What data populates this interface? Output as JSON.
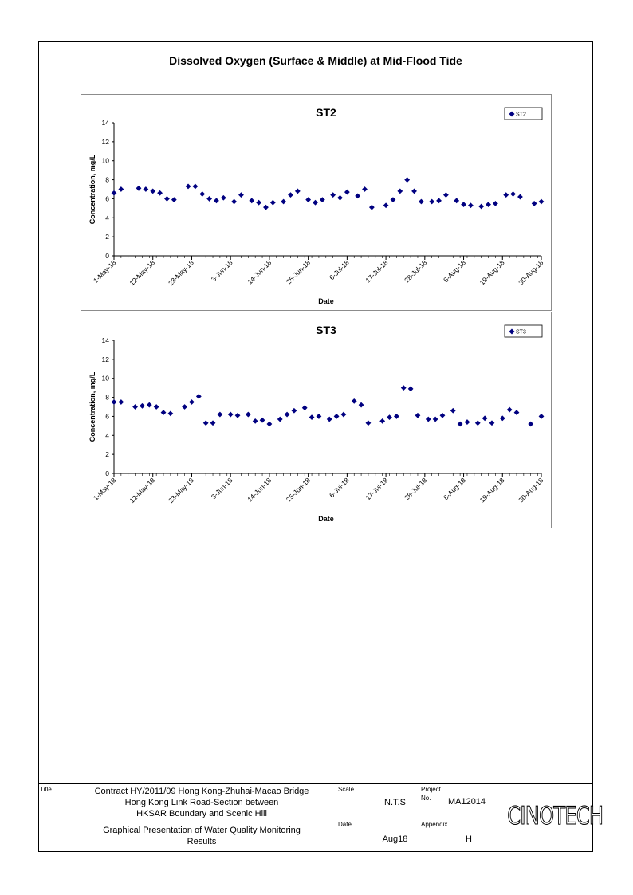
{
  "page": {
    "title": "Dissolved Oxygen (Surface & Middle) at Mid-Flood Tide"
  },
  "chart_data": [
    {
      "type": "scatter",
      "title": "ST2",
      "xlabel": "Date",
      "ylabel": "Concentration, mg/L",
      "ylim": [
        0,
        14
      ],
      "yticks": [
        0,
        2,
        4,
        6,
        8,
        10,
        12,
        14
      ],
      "xticks": [
        "1-May-18",
        "12-May-18",
        "23-May-18",
        "3-Jun-18",
        "14-Jun-18",
        "25-Jun-18",
        "6-Jul-18",
        "17-Jul-18",
        "28-Jul-18",
        "8-Aug-18",
        "19-Aug-18",
        "30-Aug-18"
      ],
      "xlim": [
        "2018-05-01",
        "2018-08-30"
      ],
      "legend_position": "top-right",
      "series": [
        {
          "name": "ST2",
          "color": "#000080",
          "marker": "diamond",
          "points": [
            {
              "x": "2018-05-01",
              "y": 6.6
            },
            {
              "x": "2018-05-03",
              "y": 7.0
            },
            {
              "x": "2018-05-08",
              "y": 7.1
            },
            {
              "x": "2018-05-10",
              "y": 7.0
            },
            {
              "x": "2018-05-12",
              "y": 6.8
            },
            {
              "x": "2018-05-14",
              "y": 6.6
            },
            {
              "x": "2018-05-16",
              "y": 6.0
            },
            {
              "x": "2018-05-18",
              "y": 5.9
            },
            {
              "x": "2018-05-22",
              "y": 7.3
            },
            {
              "x": "2018-05-24",
              "y": 7.3
            },
            {
              "x": "2018-05-26",
              "y": 6.5
            },
            {
              "x": "2018-05-28",
              "y": 6.0
            },
            {
              "x": "2018-05-30",
              "y": 5.8
            },
            {
              "x": "2018-06-01",
              "y": 6.1
            },
            {
              "x": "2018-06-04",
              "y": 5.7
            },
            {
              "x": "2018-06-06",
              "y": 6.4
            },
            {
              "x": "2018-06-09",
              "y": 5.8
            },
            {
              "x": "2018-06-11",
              "y": 5.6
            },
            {
              "x": "2018-06-13",
              "y": 5.1
            },
            {
              "x": "2018-06-15",
              "y": 5.6
            },
            {
              "x": "2018-06-18",
              "y": 5.7
            },
            {
              "x": "2018-06-20",
              "y": 6.4
            },
            {
              "x": "2018-06-22",
              "y": 6.8
            },
            {
              "x": "2018-06-25",
              "y": 5.9
            },
            {
              "x": "2018-06-27",
              "y": 5.6
            },
            {
              "x": "2018-06-29",
              "y": 5.9
            },
            {
              "x": "2018-07-02",
              "y": 6.4
            },
            {
              "x": "2018-07-04",
              "y": 6.1
            },
            {
              "x": "2018-07-06",
              "y": 6.7
            },
            {
              "x": "2018-07-09",
              "y": 6.3
            },
            {
              "x": "2018-07-11",
              "y": 7.0
            },
            {
              "x": "2018-07-13",
              "y": 5.1
            },
            {
              "x": "2018-07-17",
              "y": 5.3
            },
            {
              "x": "2018-07-19",
              "y": 5.9
            },
            {
              "x": "2018-07-21",
              "y": 6.8
            },
            {
              "x": "2018-07-23",
              "y": 8.0
            },
            {
              "x": "2018-07-25",
              "y": 6.8
            },
            {
              "x": "2018-07-27",
              "y": 5.7
            },
            {
              "x": "2018-07-30",
              "y": 5.7
            },
            {
              "x": "2018-08-01",
              "y": 5.8
            },
            {
              "x": "2018-08-03",
              "y": 6.4
            },
            {
              "x": "2018-08-06",
              "y": 5.8
            },
            {
              "x": "2018-08-08",
              "y": 5.4
            },
            {
              "x": "2018-08-10",
              "y": 5.3
            },
            {
              "x": "2018-08-13",
              "y": 5.2
            },
            {
              "x": "2018-08-15",
              "y": 5.4
            },
            {
              "x": "2018-08-17",
              "y": 5.5
            },
            {
              "x": "2018-08-20",
              "y": 6.4
            },
            {
              "x": "2018-08-22",
              "y": 6.5
            },
            {
              "x": "2018-08-24",
              "y": 6.2
            },
            {
              "x": "2018-08-28",
              "y": 5.5
            },
            {
              "x": "2018-08-30",
              "y": 5.7
            }
          ]
        }
      ]
    },
    {
      "type": "scatter",
      "title": "ST3",
      "xlabel": "Date",
      "ylabel": "Concentration, mg/L",
      "ylim": [
        0,
        14
      ],
      "yticks": [
        0,
        2,
        4,
        6,
        8,
        10,
        12,
        14
      ],
      "xticks": [
        "1-May-18",
        "12-May-18",
        "23-May-18",
        "3-Jun-18",
        "14-Jun-18",
        "25-Jun-18",
        "6-Jul-18",
        "17-Jul-18",
        "28-Jul-18",
        "8-Aug-18",
        "19-Aug-18",
        "30-Aug-18"
      ],
      "xlim": [
        "2018-05-01",
        "2018-08-30"
      ],
      "legend_position": "top-right",
      "series": [
        {
          "name": "ST3",
          "color": "#000080",
          "marker": "diamond",
          "points": [
            {
              "x": "2018-05-01",
              "y": 7.5
            },
            {
              "x": "2018-05-03",
              "y": 7.5
            },
            {
              "x": "2018-05-07",
              "y": 7.0
            },
            {
              "x": "2018-05-09",
              "y": 7.1
            },
            {
              "x": "2018-05-11",
              "y": 7.2
            },
            {
              "x": "2018-05-13",
              "y": 7.0
            },
            {
              "x": "2018-05-15",
              "y": 6.4
            },
            {
              "x": "2018-05-17",
              "y": 6.3
            },
            {
              "x": "2018-05-21",
              "y": 7.0
            },
            {
              "x": "2018-05-23",
              "y": 7.5
            },
            {
              "x": "2018-05-25",
              "y": 8.1
            },
            {
              "x": "2018-05-27",
              "y": 5.3
            },
            {
              "x": "2018-05-29",
              "y": 5.3
            },
            {
              "x": "2018-05-31",
              "y": 6.2
            },
            {
              "x": "2018-06-03",
              "y": 6.2
            },
            {
              "x": "2018-06-05",
              "y": 6.1
            },
            {
              "x": "2018-06-08",
              "y": 6.2
            },
            {
              "x": "2018-06-10",
              "y": 5.5
            },
            {
              "x": "2018-06-12",
              "y": 5.6
            },
            {
              "x": "2018-06-14",
              "y": 5.2
            },
            {
              "x": "2018-06-17",
              "y": 5.7
            },
            {
              "x": "2018-06-19",
              "y": 6.2
            },
            {
              "x": "2018-06-21",
              "y": 6.6
            },
            {
              "x": "2018-06-24",
              "y": 6.9
            },
            {
              "x": "2018-06-26",
              "y": 5.9
            },
            {
              "x": "2018-06-28",
              "y": 6.0
            },
            {
              "x": "2018-07-01",
              "y": 5.7
            },
            {
              "x": "2018-07-03",
              "y": 6.0
            },
            {
              "x": "2018-07-05",
              "y": 6.2
            },
            {
              "x": "2018-07-08",
              "y": 7.6
            },
            {
              "x": "2018-07-10",
              "y": 7.2
            },
            {
              "x": "2018-07-12",
              "y": 5.3
            },
            {
              "x": "2018-07-16",
              "y": 5.5
            },
            {
              "x": "2018-07-18",
              "y": 5.9
            },
            {
              "x": "2018-07-20",
              "y": 6.0
            },
            {
              "x": "2018-07-22",
              "y": 9.0
            },
            {
              "x": "2018-07-24",
              "y": 8.9
            },
            {
              "x": "2018-07-26",
              "y": 6.1
            },
            {
              "x": "2018-07-29",
              "y": 5.7
            },
            {
              "x": "2018-07-31",
              "y": 5.7
            },
            {
              "x": "2018-08-02",
              "y": 6.1
            },
            {
              "x": "2018-08-05",
              "y": 6.6
            },
            {
              "x": "2018-08-07",
              "y": 5.2
            },
            {
              "x": "2018-08-09",
              "y": 5.4
            },
            {
              "x": "2018-08-12",
              "y": 5.3
            },
            {
              "x": "2018-08-14",
              "y": 5.8
            },
            {
              "x": "2018-08-16",
              "y": 5.3
            },
            {
              "x": "2018-08-19",
              "y": 5.8
            },
            {
              "x": "2018-08-21",
              "y": 6.7
            },
            {
              "x": "2018-08-23",
              "y": 6.4
            },
            {
              "x": "2018-08-27",
              "y": 5.2
            },
            {
              "x": "2018-08-30",
              "y": 6.0
            }
          ]
        }
      ]
    }
  ],
  "title_block": {
    "title_label": "Title",
    "title_lines": [
      "Contract HY/2011/09 Hong Kong-Zhuhai-Macao Bridge",
      "Hong Kong Link Road-Section between",
      "HKSAR Boundary and Scenic Hill"
    ],
    "subtitle_lines": [
      "Graphical Presentation of Water Quality Monitoring",
      "Results"
    ],
    "scale_label": "Scale",
    "scale_value": "N.T.S",
    "date_label": "Date",
    "date_value": "Aug18",
    "project_label": "Project",
    "project_no_label": "No.",
    "project_no_value": "MA12014",
    "appendix_label": "Appendix",
    "appendix_value": "H",
    "logo_text": "CINOTECH"
  }
}
